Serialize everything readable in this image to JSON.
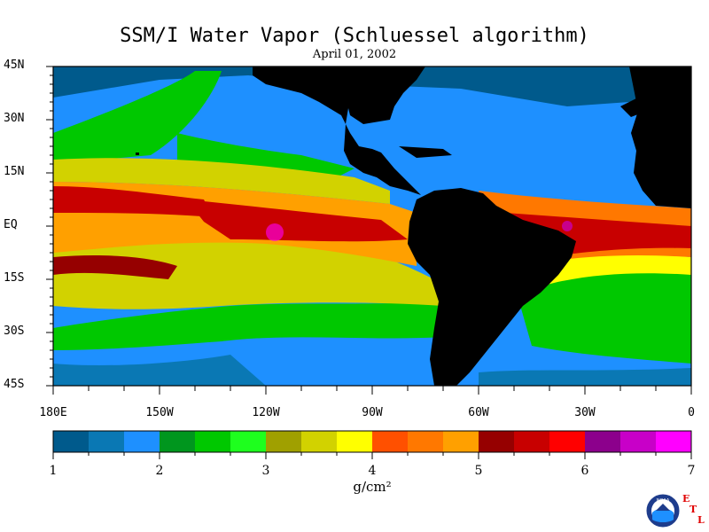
{
  "title": "SSM/I Water Vapor (Schluessel algorithm)",
  "date": "April 01, 2002",
  "lat_labels": [
    "45N",
    "30N",
    "15N",
    "EQ",
    "15S",
    "30S",
    "45S"
  ],
  "lon_labels": [
    "180E",
    "150W",
    "120W",
    "90W",
    "60W",
    "30W",
    "0"
  ],
  "colorbar": {
    "colors": [
      "#005a8c",
      "#0a78b4",
      "#1e90ff",
      "#00961e",
      "#00c800",
      "#1eff1e",
      "#a0a000",
      "#d2d200",
      "#ffff00",
      "#ff5000",
      "#ff7800",
      "#ffa000",
      "#960000",
      "#c80000",
      "#ff0000",
      "#8c008c",
      "#c800c8",
      "#ff00ff"
    ],
    "tick_labels": [
      "1",
      "2",
      "3",
      "4",
      "5",
      "6",
      "7"
    ],
    "units": "g/cm²"
  },
  "logo": {
    "name": "noaa-logo",
    "text": "NOAA"
  },
  "etl_letters": [
    "E",
    "T",
    "L"
  ]
}
